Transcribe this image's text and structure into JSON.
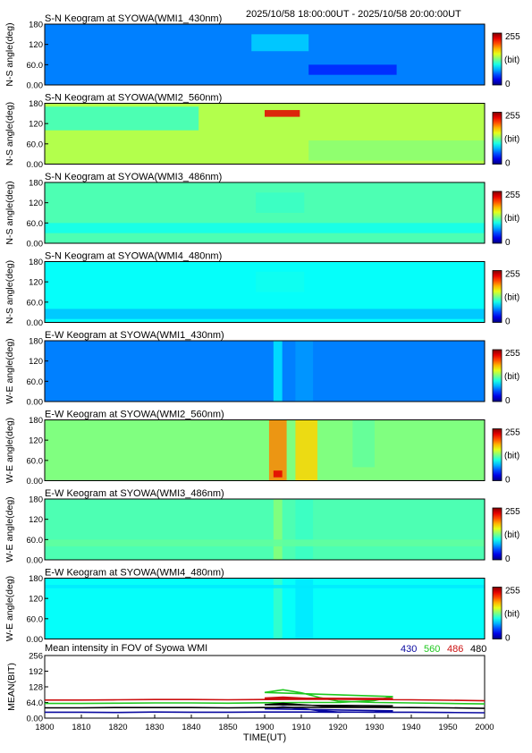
{
  "header": {
    "time_range": "2025/10/58 18:00:00UT - 2025/10/58 20:00:00UT"
  },
  "colorbar": {
    "max_label": "255",
    "unit_label": "(bit)",
    "min_label": "0"
  },
  "chart_data": [
    {
      "type": "heatmap",
      "title": "S-N Keogram at SYOWA(WMI1_430nm)",
      "ylabel": "N-S angle(deg)",
      "yticks": [
        "180",
        "120",
        "60.0",
        "0.00"
      ],
      "ylim": [
        0,
        180
      ],
      "xlim": [
        1800,
        2000
      ],
      "vmin": 0,
      "vmax": 255,
      "brightness": 0.25,
      "features": [
        {
          "name": "arc",
          "x_start": 1894,
          "x_end": 1920,
          "y_start": 100,
          "y_end": 150,
          "intensity": 85
        },
        {
          "name": "diffuse",
          "x_start": 1920,
          "x_end": 1960,
          "y_start": 30,
          "y_end": 60,
          "intensity": 40
        }
      ]
    },
    {
      "type": "heatmap",
      "title": "S-N Keogram at SYOWA(WMI2_560nm)",
      "ylabel": "N-S angle(deg)",
      "yticks": [
        "180",
        "120",
        "60.0",
        "0.00"
      ],
      "ylim": [
        0,
        180
      ],
      "xlim": [
        1800,
        2000
      ],
      "vmin": 0,
      "vmax": 255,
      "brightness": 0.55,
      "features": [
        {
          "name": "arc-band",
          "x_start": 1800,
          "x_end": 1870,
          "y_start": 100,
          "y_end": 170,
          "intensity": 110
        },
        {
          "name": "bright-arc",
          "x_start": 1900,
          "x_end": 1916,
          "y_start": 140,
          "y_end": 160,
          "intensity": 230
        },
        {
          "name": "diffuse",
          "x_start": 1920,
          "x_end": 2000,
          "y_start": 10,
          "y_end": 70,
          "intensity": 130
        }
      ]
    },
    {
      "type": "heatmap",
      "title": "S-N Keogram at SYOWA(WMI3_486nm)",
      "ylabel": "N-S angle(deg)",
      "yticks": [
        "180",
        "120",
        "60.0",
        "0.00"
      ],
      "ylim": [
        0,
        180
      ],
      "xlim": [
        1800,
        2000
      ],
      "vmin": 0,
      "vmax": 255,
      "brightness": 0.45,
      "features": [
        {
          "name": "arc",
          "x_start": 1896,
          "x_end": 1918,
          "y_start": 90,
          "y_end": 150,
          "intensity": 110
        },
        {
          "name": "band",
          "x_start": 1800,
          "x_end": 2000,
          "y_start": 30,
          "y_end": 60,
          "intensity": 100
        }
      ]
    },
    {
      "type": "heatmap",
      "title": "S-N Keogram at SYOWA(WMI4_480nm)",
      "ylabel": "N-S angle(deg)",
      "yticks": [
        "180",
        "120",
        "60.0",
        "0.00"
      ],
      "ylim": [
        0,
        180
      ],
      "xlim": [
        1800,
        2000
      ],
      "vmin": 0,
      "vmax": 255,
      "brightness": 0.38,
      "features": [
        {
          "name": "arc",
          "x_start": 1896,
          "x_end": 1918,
          "y_start": 90,
          "y_end": 150,
          "intensity": 100
        },
        {
          "name": "band",
          "x_start": 1800,
          "x_end": 2000,
          "y_start": 10,
          "y_end": 40,
          "intensity": 80
        }
      ]
    },
    {
      "type": "heatmap",
      "title": "E-W Keogram at SYOWA(WMI1_430nm)",
      "ylabel": "W-E angle(deg)",
      "yticks": [
        "180",
        "120",
        "60.0",
        "0.00"
      ],
      "ylim": [
        0,
        180
      ],
      "xlim": [
        1800,
        2000
      ],
      "vmin": 0,
      "vmax": 255,
      "brightness": 0.25,
      "features": [
        {
          "name": "streak-1",
          "x_start": 1904,
          "x_end": 1908,
          "y_start": 0,
          "y_end": 180,
          "intensity": 90
        },
        {
          "name": "streak-2",
          "x_start": 1914,
          "x_end": 1922,
          "y_start": 0,
          "y_end": 180,
          "intensity": 70
        }
      ]
    },
    {
      "type": "heatmap",
      "title": "E-W Keogram at SYOWA(WMI2_560nm)",
      "ylabel": "W-E angle(deg)",
      "yticks": [
        "180",
        "120",
        "60.0",
        "0.00"
      ],
      "ylim": [
        0,
        180
      ],
      "xlim": [
        1800,
        2000
      ],
      "vmin": 0,
      "vmax": 255,
      "brightness": 0.5,
      "features": [
        {
          "name": "streak-1",
          "x_start": 1902,
          "x_end": 1910,
          "y_start": 0,
          "y_end": 180,
          "intensity": 190
        },
        {
          "name": "bright-spot",
          "x_start": 1904,
          "x_end": 1908,
          "y_start": 10,
          "y_end": 30,
          "intensity": 230
        },
        {
          "name": "streak-2",
          "x_start": 1914,
          "x_end": 1924,
          "y_start": 0,
          "y_end": 180,
          "intensity": 170
        },
        {
          "name": "streak-3",
          "x_start": 1940,
          "x_end": 1950,
          "y_start": 40,
          "y_end": 180,
          "intensity": 120
        }
      ]
    },
    {
      "type": "heatmap",
      "title": "E-W Keogram at SYOWA(WMI3_486nm)",
      "ylabel": "W-E angle(deg)",
      "yticks": [
        "180",
        "120",
        "60.0",
        "0.00"
      ],
      "ylim": [
        0,
        180
      ],
      "xlim": [
        1800,
        2000
      ],
      "vmin": 0,
      "vmax": 255,
      "brightness": 0.45,
      "features": [
        {
          "name": "streak-1",
          "x_start": 1904,
          "x_end": 1908,
          "y_start": 0,
          "y_end": 180,
          "intensity": 130
        },
        {
          "name": "streak-2",
          "x_start": 1914,
          "x_end": 1922,
          "y_start": 0,
          "y_end": 180,
          "intensity": 110
        },
        {
          "name": "band",
          "x_start": 1800,
          "x_end": 2000,
          "y_start": 40,
          "y_end": 60,
          "intensity": 120
        }
      ]
    },
    {
      "type": "heatmap",
      "title": "E-W Keogram at SYOWA(WMI4_480nm)",
      "ylabel": "W-E angle(deg)",
      "yticks": [
        "180",
        "120",
        "60.0",
        "0.00"
      ],
      "ylim": [
        0,
        180
      ],
      "xlim": [
        1800,
        2000
      ],
      "vmin": 0,
      "vmax": 255,
      "brightness": 0.38,
      "features": [
        {
          "name": "streak-1",
          "x_start": 1904,
          "x_end": 1908,
          "y_start": 0,
          "y_end": 180,
          "intensity": 110
        },
        {
          "name": "streak-2",
          "x_start": 1914,
          "x_end": 1922,
          "y_start": 0,
          "y_end": 180,
          "intensity": 90
        },
        {
          "name": "line",
          "x_start": 1800,
          "x_end": 2000,
          "y_start": 150,
          "y_end": 160,
          "intensity": 90
        }
      ]
    },
    {
      "type": "line",
      "title": "Mean intensity in FOV of Syowa WMI",
      "xlabel": "TIME(UT)",
      "ylabel": "MEAN(BIT)",
      "ylim": [
        0,
        256
      ],
      "xlim": [
        1800,
        2000
      ],
      "xticks": [
        "1800",
        "1810",
        "1820",
        "1830",
        "1840",
        "1850",
        "1900",
        "1910",
        "1920",
        "1930",
        "1940",
        "1950",
        "2000"
      ],
      "yticks": [
        "256",
        "192",
        "128",
        "64.0",
        "0.00"
      ],
      "x": [
        1800,
        1810,
        1820,
        1830,
        1840,
        1850,
        1860,
        1870,
        1880,
        1890,
        1895,
        1900,
        1905,
        1910,
        1915,
        1920,
        1930,
        1940,
        1950,
        2000
      ],
      "series": [
        {
          "name": "430",
          "color": "#0a0aa0",
          "values": [
            24,
            24,
            23,
            25,
            24,
            24,
            25,
            25,
            24,
            25,
            30,
            38,
            46,
            40,
            30,
            25,
            24,
            24,
            23,
            22
          ]
        },
        {
          "name": "560",
          "color": "#1ec81e",
          "values": [
            60,
            60,
            61,
            62,
            62,
            61,
            63,
            64,
            64,
            72,
            88,
            105,
            116,
            104,
            84,
            70,
            64,
            62,
            60,
            58
          ]
        },
        {
          "name": "486",
          "color": "#cc1010",
          "values": [
            74,
            74,
            75,
            76,
            76,
            75,
            76,
            77,
            77,
            78,
            80,
            82,
            86,
            82,
            79,
            77,
            76,
            75,
            73,
            71
          ]
        },
        {
          "name": "480",
          "color": "#000000",
          "values": [
            42,
            42,
            43,
            43,
            43,
            42,
            43,
            44,
            44,
            46,
            50,
            55,
            60,
            55,
            50,
            46,
            44,
            43,
            42,
            40
          ]
        }
      ]
    }
  ]
}
